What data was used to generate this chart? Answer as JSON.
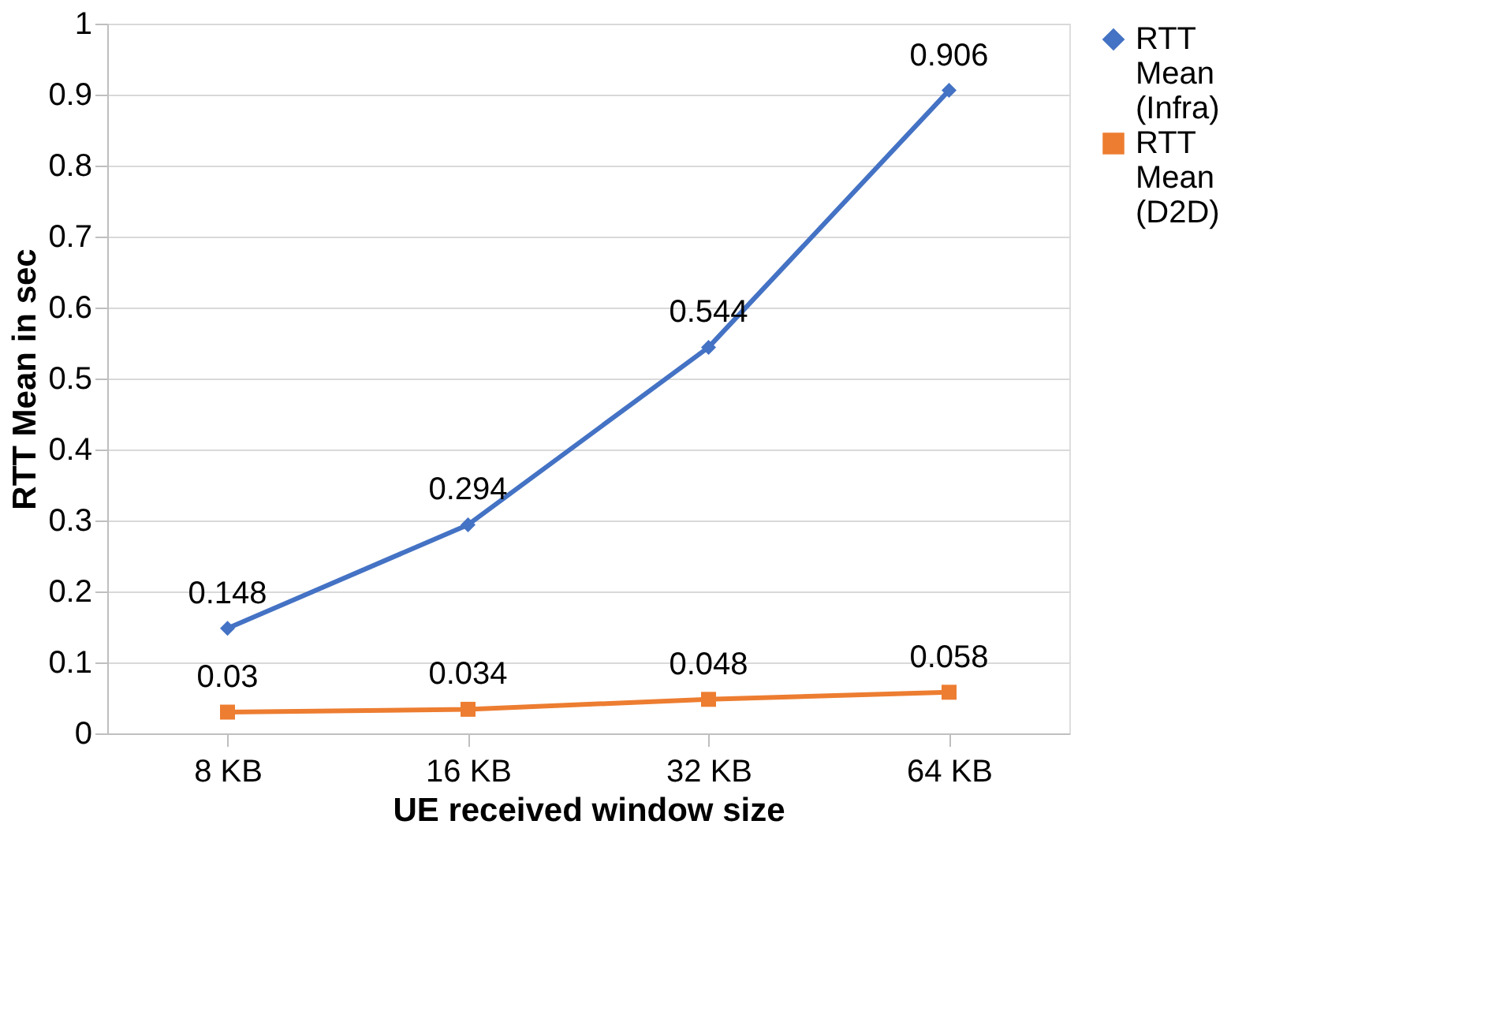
{
  "chart_data": {
    "type": "line",
    "xlabel": "UE received window size",
    "ylabel": "RTT Mean in sec",
    "categories": [
      "8 KB",
      "16 KB",
      "32 KB",
      "64 KB"
    ],
    "series": [
      {
        "name": "RTT Mean (Infra)",
        "color": "#4472c4",
        "marker": "diamond",
        "values": [
          0.148,
          0.294,
          0.544,
          0.906
        ]
      },
      {
        "name": "RTT Mean (D2D)",
        "color": "#ed7d31",
        "marker": "square",
        "values": [
          0.03,
          0.034,
          0.048,
          0.058
        ]
      }
    ],
    "ylim": [
      0,
      1
    ],
    "yticks": [
      0,
      0.1,
      0.2,
      0.3,
      0.4,
      0.5,
      0.6,
      0.7,
      0.8,
      0.9,
      1
    ],
    "grid": "y",
    "legend": "right",
    "data_labels": true,
    "line_style": "solid"
  }
}
